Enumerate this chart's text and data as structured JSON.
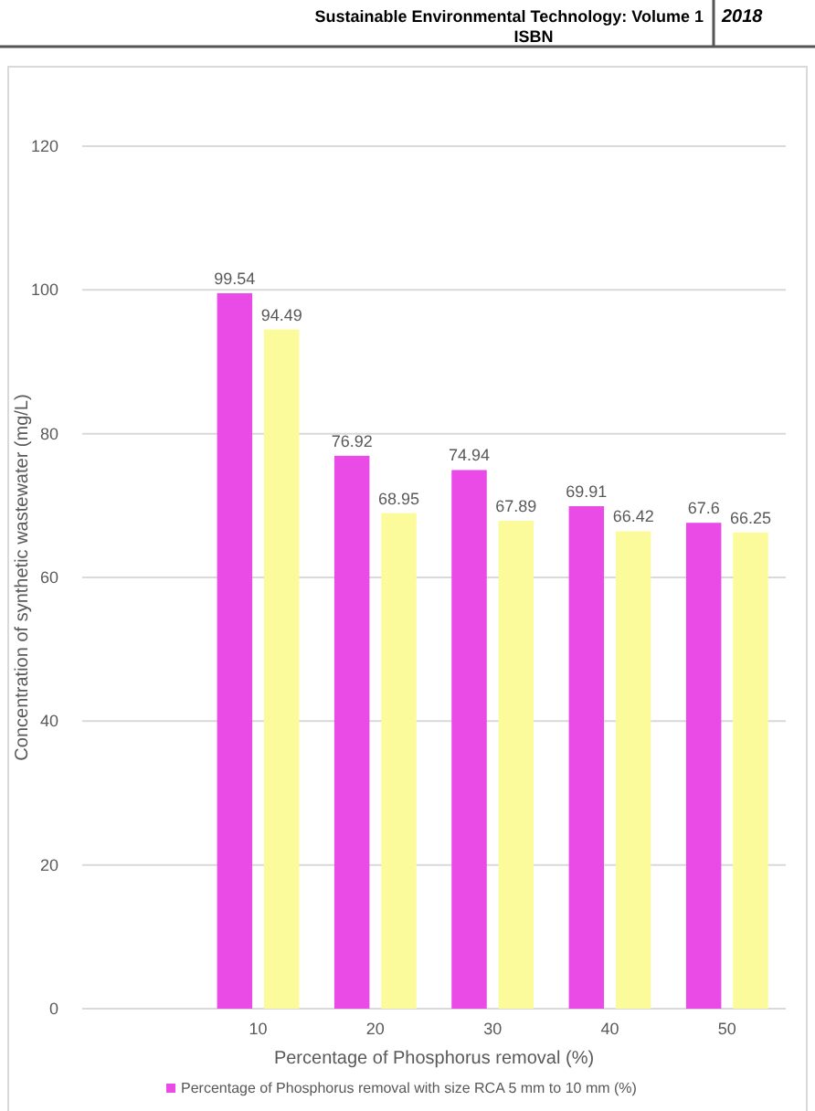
{
  "chart_data": {
    "type": "bar",
    "xlabel": "Percentage of Phosphorus removal (%)",
    "ylabel": "Concentration of synthetic wastewater (mg/L)",
    "annotations": [
      "Sustainable Environmental Technology: Volume 1",
      "ISBN",
      "2018"
    ],
    "categories": [
      null,
      "10",
      "20",
      "30",
      "40",
      "50"
    ],
    "series": [
      {
        "name": "Percentage of Phosphorus removal with size RCA 5 mm to 10 mm (%)",
        "color": "#ea4be6",
        "values": [
          null,
          99.54,
          76.92,
          74.94,
          69.91,
          67.6
        ]
      },
      {
        "color": "#fbfb9c",
        "values": [
          null,
          94.49,
          68.95,
          67.89,
          66.42,
          66.25
        ]
      }
    ],
    "ylim": [
      0,
      120
    ],
    "yticks": [
      0,
      20,
      40,
      60,
      80,
      100,
      120
    ],
    "grid": "y",
    "data_labels": true,
    "legend": "bottom"
  }
}
